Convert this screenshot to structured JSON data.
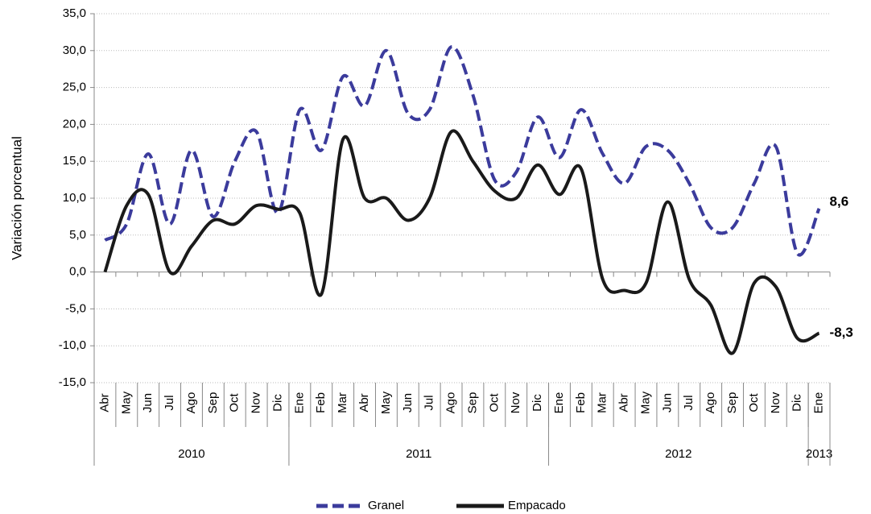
{
  "chart_data": {
    "type": "line",
    "y_label": "Variación porcentual",
    "categories": [
      "Abr",
      "May",
      "Jun",
      "Jul",
      "Ago",
      "Sep",
      "Oct",
      "Nov",
      "Dic",
      "Ene",
      "Feb",
      "Mar",
      "Abr",
      "May",
      "Jun",
      "Jul",
      "Ago",
      "Sep",
      "Oct",
      "Nov",
      "Dic",
      "Ene",
      "Feb",
      "Mar",
      "Abr",
      "May",
      "Jun",
      "Jul",
      "Ago",
      "Sep",
      "Oct",
      "Nov",
      "Dic",
      "Ene"
    ],
    "year_groups": [
      {
        "label": "2010",
        "count": 9
      },
      {
        "label": "2011",
        "count": 12
      },
      {
        "label": "2012",
        "count": 12
      },
      {
        "label": "2013",
        "count": 1
      }
    ],
    "series": [
      {
        "name": "Granel",
        "color": "#3b3b9c",
        "dashed": true,
        "values": [
          4.3,
          6.5,
          16,
          6.5,
          16.5,
          7.5,
          15,
          19,
          8,
          22,
          16.5,
          26.5,
          22.5,
          30,
          21.5,
          22,
          30.5,
          24,
          12.5,
          13.5,
          21,
          15.5,
          22,
          16,
          12,
          17,
          16.5,
          12,
          6,
          6,
          12,
          17,
          2.5,
          8.6
        ],
        "value_labels": [
          null,
          null,
          null,
          null,
          null,
          null,
          null,
          null,
          null,
          null,
          null,
          null,
          null,
          null,
          null,
          null,
          null,
          null,
          null,
          null,
          null,
          null,
          null,
          null,
          null,
          null,
          null,
          null,
          null,
          null,
          null,
          null,
          null,
          "8,6"
        ]
      },
      {
        "name": "Empacado",
        "color": "#1a1a1a",
        "dashed": false,
        "values": [
          0,
          9,
          10.5,
          0,
          3.5,
          7,
          6.5,
          9,
          8.5,
          8,
          -3,
          18,
          10,
          10,
          7,
          10,
          19,
          15,
          11,
          10,
          14.5,
          10.5,
          14,
          -1,
          -2.5,
          -1.5,
          9.5,
          -1,
          -4.5,
          -11,
          -1.5,
          -2,
          -9,
          -8.3
        ],
        "value_labels": [
          null,
          null,
          null,
          null,
          null,
          null,
          null,
          null,
          null,
          null,
          null,
          null,
          null,
          null,
          null,
          null,
          null,
          null,
          null,
          null,
          null,
          null,
          null,
          null,
          null,
          null,
          null,
          null,
          null,
          null,
          null,
          null,
          null,
          "-8,3"
        ]
      }
    ],
    "ylim": [
      -15,
      35
    ],
    "yticks": [
      {
        "value": -15,
        "label": "-15,0"
      },
      {
        "value": -10,
        "label": "-10,0"
      },
      {
        "value": -5,
        "label": "-5,0"
      },
      {
        "value": 0,
        "label": "0,0"
      },
      {
        "value": 5,
        "label": "5,0"
      },
      {
        "value": 10,
        "label": "10,0"
      },
      {
        "value": 15,
        "label": "15,0"
      },
      {
        "value": 20,
        "label": "20,0"
      },
      {
        "value": 25,
        "label": "25,0"
      },
      {
        "value": 30,
        "label": "30,0"
      },
      {
        "value": 35,
        "label": "35,0"
      }
    ],
    "grid": true
  }
}
